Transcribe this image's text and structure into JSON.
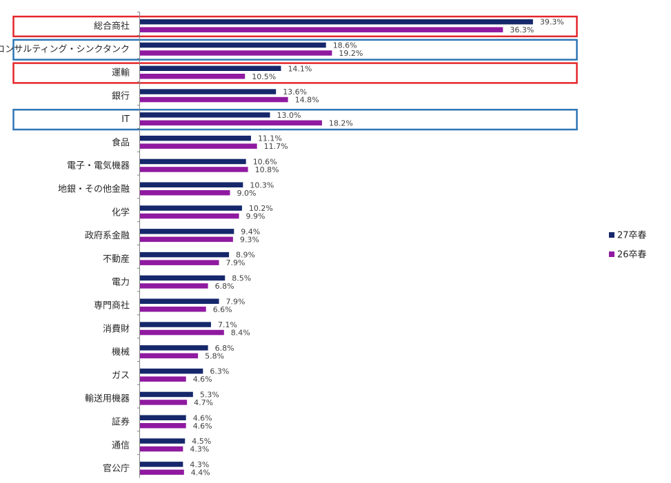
{
  "chart_data": {
    "type": "bar",
    "orientation": "horizontal",
    "categories": [
      "総合商社",
      "コンサルティング・シンクタンク",
      "運輸",
      "銀行",
      "IT",
      "食品",
      "電子・電気機器",
      "地銀・その他金融",
      "化学",
      "政府系金融",
      "不動産",
      "電力",
      "専門商社",
      "消費財",
      "機械",
      "ガス",
      "輸送用機器",
      "証券",
      "通信",
      "官公庁"
    ],
    "series": [
      {
        "name": "27卒春",
        "color": "#16286b",
        "values": [
          39.3,
          18.6,
          14.1,
          13.6,
          13.0,
          11.1,
          10.6,
          10.3,
          10.2,
          9.4,
          8.9,
          8.5,
          7.9,
          7.1,
          6.8,
          6.3,
          5.3,
          4.6,
          4.5,
          4.3
        ],
        "labels": [
          "39.3%",
          "18.6%",
          "14.1%",
          "13.6%",
          "13.0%",
          "11.1%",
          "10.6%",
          "10.3%",
          "10.2%",
          "9.4%",
          "8.9%",
          "8.5%",
          "7.9%",
          "7.1%",
          "6.8%",
          "6.3%",
          "5.3%",
          "4.6%",
          "4.5%",
          "4.3%"
        ]
      },
      {
        "name": "26卒春",
        "color": "#8f1aa0",
        "values": [
          36.3,
          19.2,
          10.5,
          14.8,
          18.2,
          11.7,
          10.8,
          9.0,
          9.9,
          9.3,
          7.9,
          6.8,
          6.6,
          8.4,
          5.8,
          4.6,
          4.7,
          4.6,
          4.3,
          4.4
        ],
        "labels": [
          "36.3%",
          "19.2%",
          "10.5%",
          "14.8%",
          "18.2%",
          "11.7%",
          "10.8%",
          "9.0%",
          "9.9%",
          "9.3%",
          "7.9%",
          "6.8%",
          "6.6%",
          "8.4%",
          "5.8%",
          "4.6%",
          "4.7%",
          "4.6%",
          "4.3%",
          "4.4%"
        ]
      }
    ],
    "xlim": [
      0,
      40
    ],
    "highlights": [
      {
        "category": "総合商社",
        "color": "#e3262b"
      },
      {
        "category": "コンサルティング・シンクタンク",
        "color": "#2e75b6"
      },
      {
        "category": "運輸",
        "color": "#e3262b"
      },
      {
        "category": "IT",
        "color": "#2e75b6"
      }
    ],
    "legend_position": "right"
  }
}
